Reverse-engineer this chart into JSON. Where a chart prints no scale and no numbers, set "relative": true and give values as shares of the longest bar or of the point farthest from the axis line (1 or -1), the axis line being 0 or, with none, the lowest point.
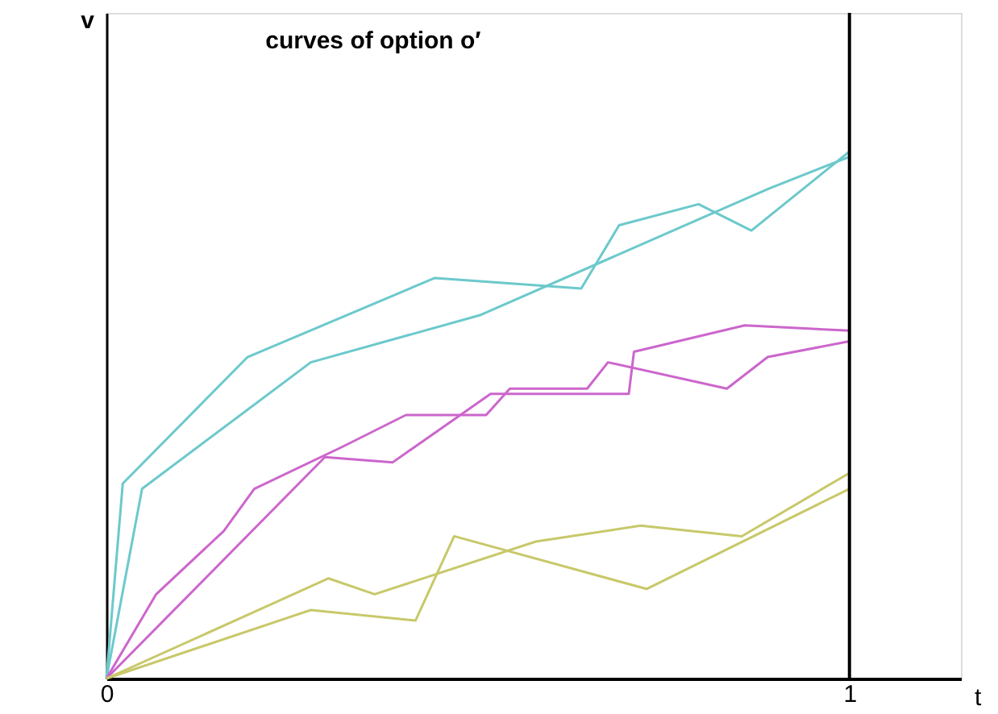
{
  "chart_data": {
    "type": "line",
    "title": "curves of option o′",
    "xlabel": "t",
    "ylabel": "v",
    "relative": true,
    "xlim": [
      0,
      1.15
    ],
    "xticks": [
      0,
      1
    ],
    "grid": false,
    "marker": "none",
    "line_style": "solid",
    "ref_lines": [
      {
        "axis": "x",
        "value": 1,
        "color": "#000000"
      }
    ],
    "series": [
      {
        "color": "#6cc9cc",
        "x": [
          0,
          0.022,
          0.19,
          0.442,
          0.639,
          0.69,
          0.797,
          0.868,
          1.0
        ],
        "values": [
          0,
          0.37,
          0.61,
          0.76,
          0.74,
          0.86,
          0.9,
          0.85,
          1.0
        ]
      },
      {
        "color": "#6cc9cc",
        "x": [
          0,
          0.048,
          0.275,
          0.504,
          0.892,
          1.0
        ],
        "values": [
          0,
          0.36,
          0.6,
          0.69,
          0.93,
          0.99
        ]
      },
      {
        "color": "#cc66cc",
        "x": [
          0,
          0.067,
          0.158,
          0.199,
          0.318,
          0.403,
          0.511,
          0.543,
          0.647,
          0.675,
          0.835,
          0.89,
          1.0
        ],
        "values": [
          0,
          0.16,
          0.28,
          0.36,
          0.44,
          0.5,
          0.5,
          0.55,
          0.55,
          0.6,
          0.55,
          0.61,
          0.64
        ]
      },
      {
        "color": "#cc66cc",
        "x": [
          0,
          0.294,
          0.385,
          0.517,
          0.703,
          0.71,
          0.859,
          1.0
        ],
        "values": [
          0,
          0.42,
          0.41,
          0.54,
          0.54,
          0.62,
          0.67,
          0.66
        ]
      },
      {
        "color": "#c8c86a",
        "x": [
          0,
          0.299,
          0.361,
          0.578,
          0.719,
          0.855,
          1.0
        ],
        "values": [
          0,
          0.19,
          0.16,
          0.26,
          0.29,
          0.27,
          0.39
        ]
      },
      {
        "color": "#c8c86a",
        "x": [
          0,
          0.275,
          0.416,
          0.468,
          0.727,
          1.0
        ],
        "values": [
          0,
          0.13,
          0.11,
          0.27,
          0.17,
          0.36
        ]
      }
    ]
  }
}
